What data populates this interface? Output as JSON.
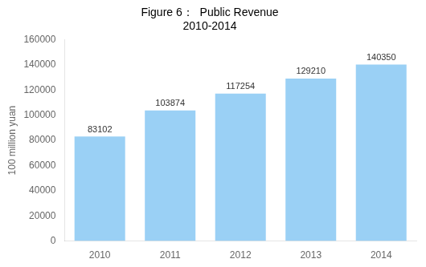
{
  "chart_data": {
    "type": "bar",
    "title": "Figure 6：  Public Revenue\n2010-2014",
    "ylabel": "100 million yuan",
    "categories": [
      "2010",
      "2011",
      "2012",
      "2013",
      "2014"
    ],
    "values": [
      83102,
      103874,
      117254,
      129210,
      140350
    ],
    "ylim": [
      0,
      160000
    ],
    "yticks": [
      0,
      20000,
      40000,
      60000,
      80000,
      100000,
      120000,
      140000,
      160000
    ],
    "grid": false,
    "data_labels": true
  }
}
